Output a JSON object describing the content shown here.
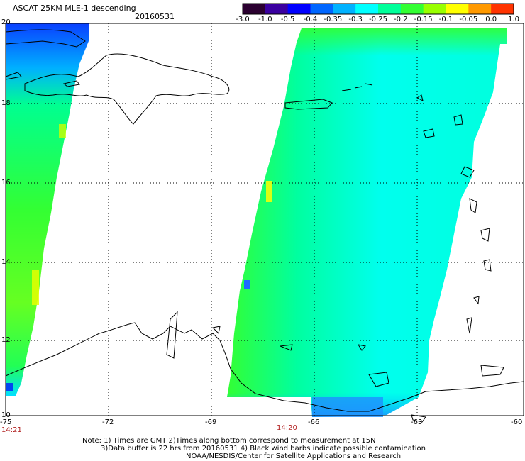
{
  "header": {
    "title": "ASCAT 25KM MLE-1 descending",
    "date": "20160531"
  },
  "colorbar": {
    "labels": [
      "-3.0",
      "-1.0",
      "-0.5",
      "-0.4",
      "-0.35",
      "-0.3",
      "-0.25",
      "-0.2",
      "-0.15",
      "-0.1",
      "-0.05",
      "0.0",
      "1.0"
    ],
    "colors": [
      "#2b0030",
      "#3a00a0",
      "#0000ff",
      "#0066ff",
      "#00b2ff",
      "#00ffff",
      "#00ff9a",
      "#33ff33",
      "#99ff00",
      "#ffff00",
      "#ff9900",
      "#ff3300"
    ]
  },
  "axes": {
    "lon_labels": [
      "-75",
      "-72",
      "-69",
      "-66",
      "-63",
      "-60"
    ],
    "lat_labels": [
      "20",
      "18",
      "16",
      "14",
      "12",
      "10"
    ]
  },
  "times": {
    "left": "14:21",
    "right": "14:20"
  },
  "notes": {
    "line1": "Note: 1) Times are GMT 2)Times along bottom correspond to measurement at 15N",
    "line2": "3)Data buffer is 22 hrs from 20160531 4) Black wind barbs indicate possible contamination",
    "line3": "NOAA/NESDIS/Center for Satellite Applications and Research"
  },
  "swaths": {
    "left": {
      "description_color": "#00ff66"
    },
    "right": {
      "description_color": "#00ffcc"
    }
  }
}
